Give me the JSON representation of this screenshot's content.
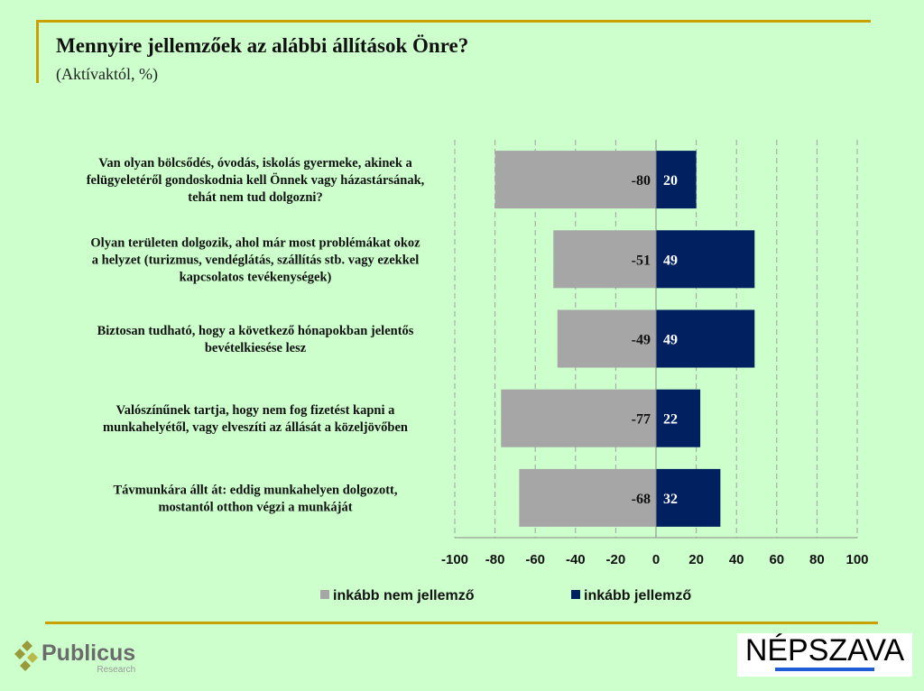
{
  "header": {
    "title": "Mennyire jellemzőek az alábbi állítások Önre?",
    "subtitle": "(Aktívaktól, %)"
  },
  "chart_data": {
    "type": "bar",
    "orientation": "horizontal-diverging",
    "categories": [
      [
        "Van olyan bölcsődés, óvodás, iskolás gyermeke, akinek a",
        "felügyeletéről gondoskodnia kell Önnek vagy házastársának,",
        "tehát nem tud dolgozni?"
      ],
      [
        "Olyan területen dolgozik, ahol már most problémákat okoz",
        "a helyzet (turizmus, vendéglátás, szállítás stb. vagy ezekkel",
        "kapcsolatos tevékenységek)"
      ],
      [
        "Biztosan tudható, hogy a következő hónapokban jelentős",
        "bevételkiesése lesz"
      ],
      [
        "Valószínűnek tartja, hogy nem fog fizetést kapni a",
        "munkahelyétől, vagy elveszíti az állását a közeljövőben"
      ],
      [
        "Távmunkára állt át: eddig munkahelyen dolgozott,",
        "mostantól otthon végzi a munkáját"
      ]
    ],
    "series": [
      {
        "name": "inkább nem jellemző",
        "color": "#a6a6a6",
        "values": [
          -80,
          -51,
          -49,
          -77,
          -68
        ]
      },
      {
        "name": "inkább jellemző",
        "color": "#002060",
        "values": [
          20,
          49,
          49,
          22,
          32
        ]
      }
    ],
    "xlim": [
      -100,
      100
    ],
    "xticks": [
      -100,
      -80,
      -60,
      -40,
      -20,
      0,
      20,
      40,
      60,
      80,
      100
    ],
    "grid": true,
    "legend": "bottom"
  },
  "logos": {
    "left": {
      "name": "Publicus",
      "sub": "Research"
    },
    "right": {
      "name": "NÉPSZAVA"
    }
  }
}
